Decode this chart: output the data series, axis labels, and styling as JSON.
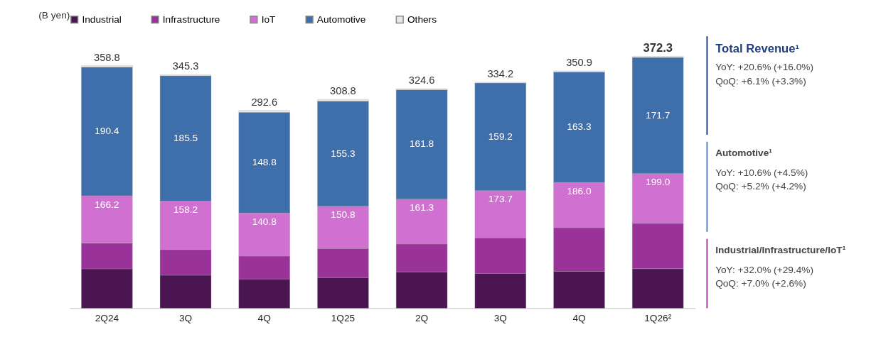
{
  "chart_data": {
    "type": "bar",
    "stacked": true,
    "ylabel": "(B yen)",
    "categories": [
      "2Q24",
      "3Q",
      "4Q",
      "1Q25",
      "2Q",
      "3Q",
      "4Q",
      "1Q26²"
    ],
    "series": [
      {
        "name": "Industrial",
        "color": "#4a1550",
        "values": [
          58.2,
          48.8,
          43.2,
          45.4,
          53.6,
          51.5,
          54.5,
          58.3
        ]
      },
      {
        "name": "Infrastructure",
        "color": "#993399",
        "values": [
          38.0,
          38.0,
          33.8,
          42.8,
          41.3,
          52.5,
          64.5,
          67.2
        ]
      },
      {
        "name": "IoT",
        "color": "#d070d0",
        "values": [
          70.0,
          71.4,
          63.8,
          62.6,
          66.4,
          69.7,
          67.0,
          73.5
        ]
      },
      {
        "name": "Automotive",
        "color": "#3f6faa",
        "values": [
          190.4,
          185.5,
          148.8,
          155.3,
          161.8,
          159.2,
          163.3,
          171.7
        ],
        "value_labels": [
          "190.4",
          "185.5",
          "148.8",
          "155.3",
          "161.8",
          "159.2",
          "163.3",
          "171.7"
        ]
      },
      {
        "name": "Others",
        "color": "#e8e8e8",
        "values": [
          2.2,
          1.6,
          3.0,
          2.7,
          1.5,
          1.3,
          1.6,
          1.6
        ]
      }
    ],
    "totals": [
      "358.8",
      "345.3",
      "292.6",
      "308.8",
      "324.6",
      "334.2",
      "350.9",
      "372.3"
    ],
    "tick_labels": "x",
    "grid": false,
    "legend": "top",
    "annotations": [
      {
        "text": "166.2",
        "x": "2Q24",
        "y": 166.2
      },
      {
        "text": "158.2",
        "x": "3Q",
        "y": 158.2
      },
      {
        "text": "140.8",
        "x": "4Q",
        "y": 140.8
      },
      {
        "text": "150.8",
        "x": "1Q25",
        "y": 150.8
      },
      {
        "text": "161.3",
        "x": "2Q",
        "y": 161.3
      },
      {
        "text": "173.7",
        "y": 173.7
      },
      {
        "text": "186.0",
        "y": 186.0
      },
      {
        "text": "199.0",
        "x": "1Q26²",
        "y": 199.0
      },
      "Total Revenue¹",
      "YoY:   +20.6% (+16.0%)",
      "QoQ:   +6.1% (+3.3%)",
      "Automotive¹",
      "YoY:   +10.6% (+4.5%)",
      "QoQ:   +5.2% (+4.2%)",
      "Industrial/Infrastructure/IoT¹",
      "YoY:   +32.0% (+29.4%)",
      "QoQ:   +7.0% (+2.6%)"
    ]
  }
}
